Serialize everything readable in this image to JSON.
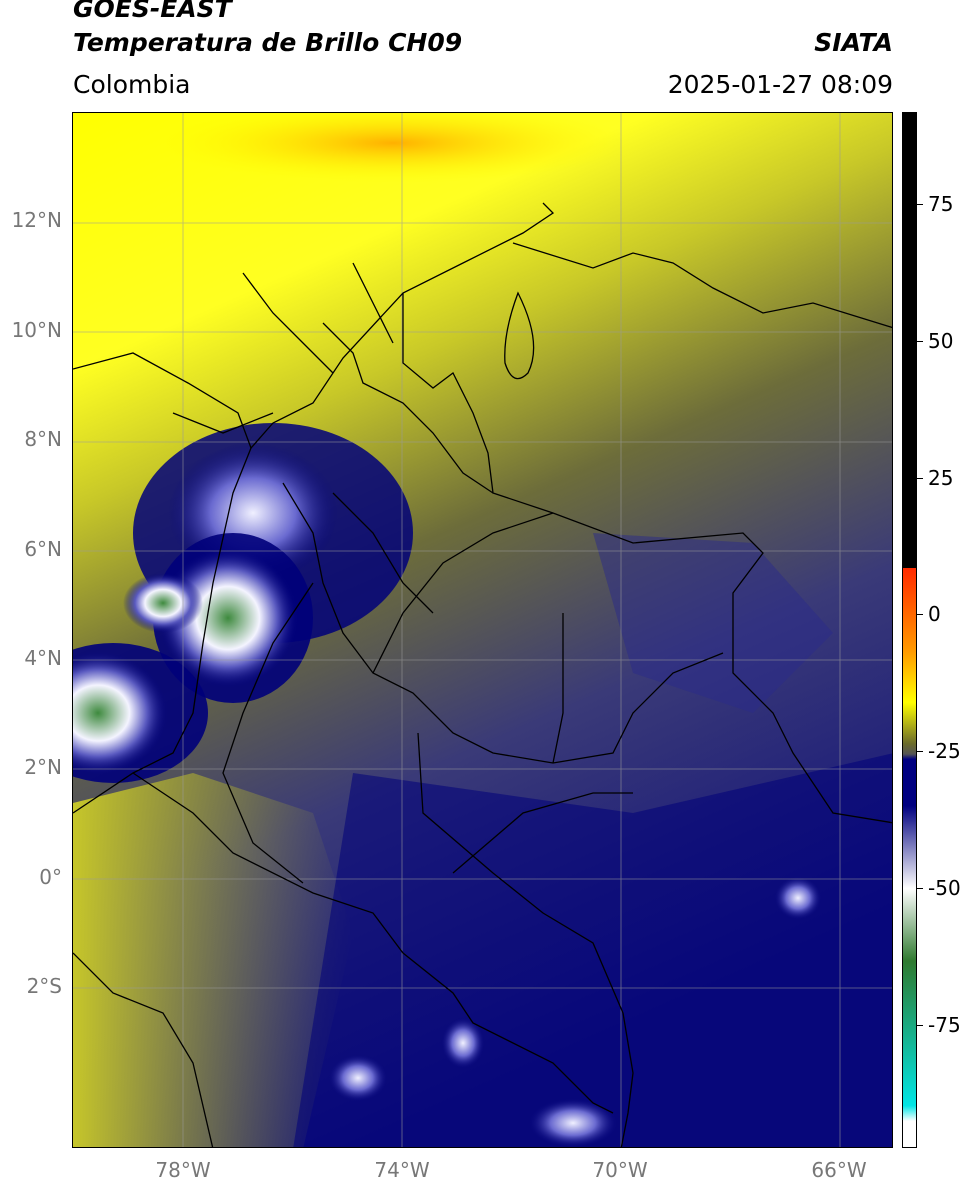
{
  "header": {
    "satellite": "GOES-EAST",
    "product": "Temperatura de Brillo CH09",
    "organization": "SIATA",
    "region": "Colombia",
    "timestamp": "2025-01-27 08:09"
  },
  "axes": {
    "lat_labels": [
      "12°N",
      "10°N",
      "8°N",
      "6°N",
      "4°N",
      "2°N",
      "0°",
      "2°S"
    ],
    "lon_labels": [
      "78°W",
      "74°W",
      "70°W",
      "66°W"
    ]
  },
  "colorbar": {
    "tick_labels": [
      "75",
      "50",
      "25",
      "0",
      "-25",
      "-50",
      "-75"
    ],
    "colors": {
      "hot": "#000000",
      "red": "#ff2a00",
      "orange": "#ff9900",
      "yellow": "#ffff00",
      "olive": "#6b6b2a",
      "gray": "#555555",
      "navy": "#000080",
      "white": "#ffffff",
      "green": "#2f7a2f",
      "cyan": "#00e5e5"
    }
  },
  "map_palette": {
    "warm": "#ffff00",
    "mid": "#a8a827",
    "cool": "#3a3a7a",
    "cold": "#00007a",
    "coldest": "#ffffff",
    "cloudtop": "#3e8a3e",
    "border": "#000000"
  }
}
